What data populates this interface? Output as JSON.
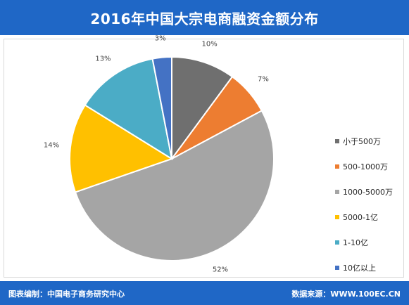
{
  "header": {
    "title": "2016年中国大宗电商融资金额分布"
  },
  "footer": {
    "source_left": "图表编制：中国电子商务研究中心",
    "source_right": "数据来源：WWW.100EC.CN"
  },
  "chart_data": {
    "type": "pie",
    "title": "2016年中国大宗电商融资金额分布",
    "legend_position": "right",
    "slices": [
      {
        "label": "小于500万",
        "value": 10,
        "display": "10%",
        "color": "#6f6f6f"
      },
      {
        "label": "500-1000万",
        "value": 7,
        "display": "7%",
        "color": "#ed7d31"
      },
      {
        "label": "1000-5000万",
        "value": 52,
        "display": "52%",
        "color": "#a5a5a5"
      },
      {
        "label": "5000-1亿",
        "value": 14,
        "display": "14%",
        "color": "#ffc000"
      },
      {
        "label": "1-10亿",
        "value": 13,
        "display": "13%",
        "color": "#4bacc6"
      },
      {
        "label": "10亿以上",
        "value": 3,
        "display": "3%",
        "color": "#4472c4"
      }
    ]
  }
}
